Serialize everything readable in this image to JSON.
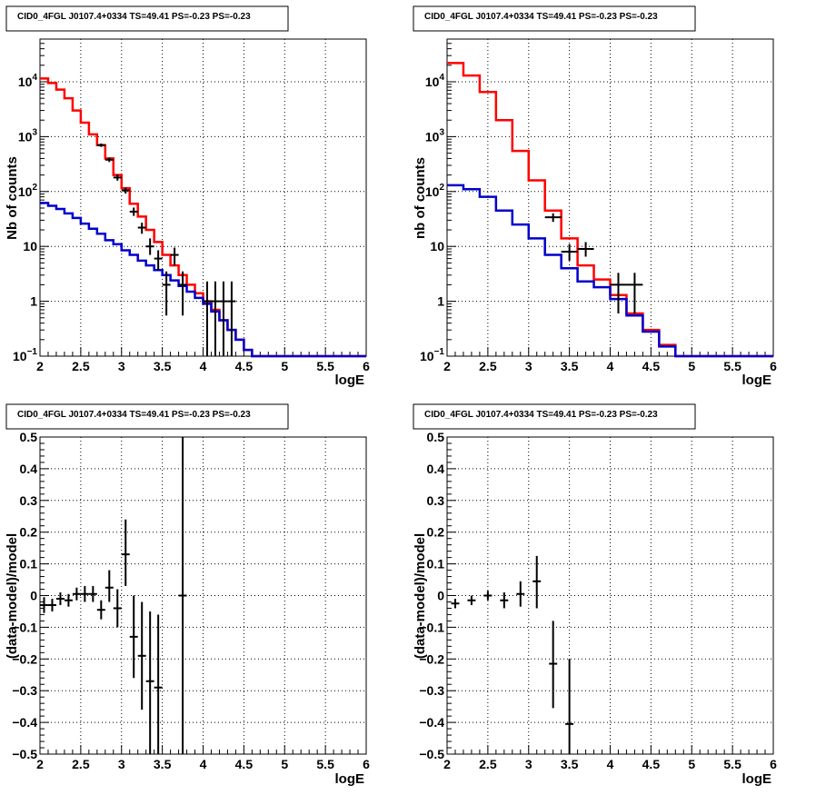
{
  "chart_data": [
    {
      "type": "line",
      "scale": "log",
      "title": "CID0_4FGL J0107.4+0334 TS=49.41 PS=-0.23 PS=-0.23",
      "xlabel": "logE",
      "ylabel": "Nb of counts",
      "xlim": [
        2,
        6
      ],
      "ylim": [
        0.1,
        60000
      ],
      "grid": true,
      "xticks": [
        "2",
        "2.5",
        "3",
        "3.5",
        "4",
        "4.5",
        "5",
        "5.5",
        "6"
      ],
      "yticks": [
        {
          "value": 0.1,
          "base": "10",
          "exp": "−1"
        },
        {
          "value": 1,
          "label": "1"
        },
        {
          "value": 10,
          "label": "10"
        },
        {
          "value": 100,
          "base": "10",
          "exp": "2"
        },
        {
          "value": 1000,
          "base": "10",
          "exp": "3"
        },
        {
          "value": 10000,
          "base": "10",
          "exp": "4"
        }
      ],
      "bin_edges": [
        2,
        2.1,
        2.2,
        2.3,
        2.4,
        2.5,
        2.6,
        2.7,
        2.8,
        2.9,
        3,
        3.1,
        3.2,
        3.3,
        3.4,
        3.5,
        3.6,
        3.7,
        3.8,
        3.9,
        4,
        4.1,
        4.2,
        4.3,
        4.4,
        4.5,
        4.6,
        4.7,
        4.8,
        4.9,
        5,
        5.1,
        5.2,
        5.3,
        5.4,
        5.5,
        5.6,
        5.7,
        5.8,
        5.9,
        6
      ],
      "series": [
        {
          "color": "#ff0000",
          "values": [
            11500,
            9500,
            7200,
            5000,
            3000,
            1800,
            1100,
            700,
            400,
            200,
            115,
            60,
            35,
            20,
            12,
            7,
            4.5,
            3,
            2,
            1.4,
            1,
            0.7,
            0.45,
            0.3,
            0.2,
            0.13,
            0.1,
            0.1,
            0.1,
            0.1,
            0.1,
            0.1,
            0.1,
            0.1,
            0.1,
            0.1,
            0.1,
            0.1,
            0.1,
            0.1
          ]
        },
        {
          "color": "#0000cc",
          "values": [
            62,
            55,
            48,
            40,
            33,
            26,
            21,
            17,
            13,
            11,
            8.5,
            7,
            5.5,
            4.5,
            3.7,
            3,
            2.4,
            1.9,
            1.5,
            1.15,
            0.9,
            0.65,
            0.45,
            0.3,
            0.2,
            0.13,
            0.1,
            0.1,
            0.1,
            0.1,
            0.1,
            0.1,
            0.1,
            0.1,
            0.1,
            0.1,
            0.1,
            0.1,
            0.1,
            0.1
          ]
        }
      ],
      "points": [
        {
          "x": 2.75,
          "y": 700,
          "lo": 650,
          "hi": 750
        },
        {
          "x": 2.85,
          "y": 380,
          "lo": 345,
          "hi": 415
        },
        {
          "x": 2.95,
          "y": 180,
          "lo": 158,
          "hi": 205
        },
        {
          "x": 3.05,
          "y": 105,
          "lo": 92,
          "hi": 118
        },
        {
          "x": 3.15,
          "y": 43,
          "lo": 36,
          "hi": 51
        },
        {
          "x": 3.25,
          "y": 22,
          "lo": 17,
          "hi": 27
        },
        {
          "x": 3.35,
          "y": 10,
          "lo": 7,
          "hi": 14
        },
        {
          "x": 3.45,
          "y": 6,
          "lo": 3.7,
          "hi": 8.5
        },
        {
          "x": 3.55,
          "y": 2,
          "lo": 0.55,
          "hi": 3.5
        },
        {
          "x": 3.65,
          "y": 7,
          "lo": 4.5,
          "hi": 9.5
        },
        {
          "x": 3.75,
          "y": 2,
          "lo": 0.55,
          "hi": 3.5
        },
        {
          "x": 4.05,
          "y": 1,
          "lo": 0.1,
          "hi": 2.3
        },
        {
          "x": 4.15,
          "y": 1,
          "lo": 0.1,
          "hi": 2.3
        },
        {
          "x": 4.25,
          "y": 1,
          "lo": 0.1,
          "hi": 2.3
        },
        {
          "x": 4.35,
          "y": 1,
          "lo": 0.1,
          "hi": 2.3
        }
      ]
    },
    {
      "type": "line",
      "scale": "log",
      "title": "CID0_4FGL J0107.4+0334 TS=49.41 PS=-0.23 PS=-0.23",
      "xlabel": "logE",
      "ylabel": "nb of counts",
      "xlim": [
        2,
        6
      ],
      "ylim": [
        0.1,
        60000
      ],
      "grid": true,
      "xticks": [
        "2",
        "2.5",
        "3",
        "3.5",
        "4",
        "4.5",
        "5",
        "5.5",
        "6"
      ],
      "yticks": [
        {
          "value": 0.1,
          "base": "10",
          "exp": "−1"
        },
        {
          "value": 1,
          "label": "1"
        },
        {
          "value": 10,
          "label": "10"
        },
        {
          "value": 100,
          "base": "10",
          "exp": "2"
        },
        {
          "value": 1000,
          "base": "10",
          "exp": "3"
        },
        {
          "value": 10000,
          "base": "10",
          "exp": "4"
        }
      ],
      "bin_edges": [
        2,
        2.2,
        2.4,
        2.6,
        2.8,
        3,
        3.2,
        3.4,
        3.6,
        3.8,
        4,
        4.2,
        4.4,
        4.6,
        4.8,
        5,
        5.2,
        5.4,
        5.6,
        5.8,
        6
      ],
      "series": [
        {
          "color": "#ff0000",
          "values": [
            22000,
            13000,
            6500,
            2000,
            550,
            160,
            45,
            14,
            4.5,
            2.5,
            1.3,
            0.6,
            0.3,
            0.16,
            0.1,
            0.1,
            0.1,
            0.1,
            0.1,
            0.1
          ]
        },
        {
          "color": "#0000cc",
          "values": [
            130,
            110,
            80,
            45,
            25,
            14,
            7,
            4,
            2.3,
            1.8,
            1.1,
            0.55,
            0.28,
            0.15,
            0.1,
            0.1,
            0.1,
            0.1,
            0.1,
            0.1
          ]
        }
      ],
      "points": [
        {
          "x": 3.3,
          "y": 34,
          "lo": 28,
          "hi": 40
        },
        {
          "x": 3.5,
          "y": 8,
          "lo": 5.5,
          "hi": 11
        },
        {
          "x": 3.7,
          "y": 9,
          "lo": 6.5,
          "hi": 12
        },
        {
          "x": 4.1,
          "y": 2,
          "lo": 0.6,
          "hi": 3.3
        },
        {
          "x": 4.3,
          "y": 2,
          "lo": 0.6,
          "hi": 3.3
        }
      ]
    },
    {
      "type": "scatter",
      "scale": "linear",
      "title": "CID0_4FGL J0107.4+0334 TS=49.41 PS=-0.23 PS=-0.23",
      "xlabel": "logE",
      "ylabel": "(data-model)/model",
      "xlim": [
        2,
        6
      ],
      "ylim": [
        -0.5,
        0.5
      ],
      "grid": true,
      "xticks": [
        "2",
        "2.5",
        "3",
        "3.5",
        "4",
        "4.5",
        "5",
        "5.5",
        "6"
      ],
      "yticks": [
        {
          "value": -0.5,
          "label": "−0.5"
        },
        {
          "value": -0.4,
          "label": "−0.4"
        },
        {
          "value": -0.3,
          "label": "−0.3"
        },
        {
          "value": -0.2,
          "label": "−0.2"
        },
        {
          "value": -0.1,
          "label": "−0.1"
        },
        {
          "value": 0,
          "label": "0"
        },
        {
          "value": 0.1,
          "label": "0.1"
        },
        {
          "value": 0.2,
          "label": "0.2"
        },
        {
          "value": 0.3,
          "label": "0.3"
        },
        {
          "value": 0.4,
          "label": "0.4"
        },
        {
          "value": 0.5,
          "label": "0.5"
        }
      ],
      "points": [
        {
          "x": 2.05,
          "y": -0.03,
          "lo": -0.055,
          "hi": -0.005
        },
        {
          "x": 2.15,
          "y": -0.03,
          "lo": -0.05,
          "hi": -0.01
        },
        {
          "x": 2.25,
          "y": -0.01,
          "lo": -0.03,
          "hi": 0.01
        },
        {
          "x": 2.35,
          "y": -0.015,
          "lo": -0.035,
          "hi": 0.005
        },
        {
          "x": 2.45,
          "y": 0.005,
          "lo": -0.015,
          "hi": 0.025
        },
        {
          "x": 2.55,
          "y": 0.005,
          "lo": -0.02,
          "hi": 0.03
        },
        {
          "x": 2.65,
          "y": 0.005,
          "lo": -0.02,
          "hi": 0.03
        },
        {
          "x": 2.75,
          "y": -0.045,
          "lo": -0.075,
          "hi": -0.015
        },
        {
          "x": 2.85,
          "y": 0.025,
          "lo": -0.02,
          "hi": 0.08
        },
        {
          "x": 2.95,
          "y": -0.04,
          "lo": -0.1,
          "hi": 0.02
        },
        {
          "x": 3.05,
          "y": 0.13,
          "lo": 0.03,
          "hi": 0.24
        },
        {
          "x": 3.15,
          "y": -0.13,
          "lo": -0.26,
          "hi": 0.0
        },
        {
          "x": 3.25,
          "y": -0.19,
          "lo": -0.36,
          "hi": -0.02
        },
        {
          "x": 3.35,
          "y": -0.27,
          "lo": -0.5,
          "hi": -0.05
        },
        {
          "x": 3.45,
          "y": -0.29,
          "lo": -0.5,
          "hi": -0.06
        },
        {
          "x": 3.75,
          "y": 0.0,
          "lo": -0.5,
          "hi": 0.5
        }
      ]
    },
    {
      "type": "scatter",
      "scale": "linear",
      "title": "CID0_4FGL J0107.4+0334 TS=49.41 PS=-0.23 PS=-0.23",
      "xlabel": "logE",
      "ylabel": "(data-model)/model",
      "xlim": [
        2,
        6
      ],
      "ylim": [
        -0.5,
        0.5
      ],
      "grid": true,
      "xticks": [
        "2",
        "2.5",
        "3",
        "3.5",
        "4",
        "4.5",
        "5",
        "5.5",
        "6"
      ],
      "yticks": [
        {
          "value": -0.5,
          "label": "−0.5"
        },
        {
          "value": -0.4,
          "label": "−0.4"
        },
        {
          "value": -0.3,
          "label": "−0.3"
        },
        {
          "value": -0.2,
          "label": "−0.2"
        },
        {
          "value": -0.1,
          "label": "−0.1"
        },
        {
          "value": 0,
          "label": "0"
        },
        {
          "value": 0.1,
          "label": "0.1"
        },
        {
          "value": 0.2,
          "label": "0.2"
        },
        {
          "value": 0.3,
          "label": "0.3"
        },
        {
          "value": 0.4,
          "label": "0.4"
        },
        {
          "value": 0.5,
          "label": "0.5"
        }
      ],
      "points": [
        {
          "x": 2.1,
          "y": -0.025,
          "lo": -0.04,
          "hi": -0.01
        },
        {
          "x": 2.3,
          "y": -0.015,
          "lo": -0.03,
          "hi": 0.0
        },
        {
          "x": 2.5,
          "y": 0.0,
          "lo": -0.015,
          "hi": 0.015
        },
        {
          "x": 2.7,
          "y": -0.015,
          "lo": -0.04,
          "hi": 0.01
        },
        {
          "x": 2.9,
          "y": 0.005,
          "lo": -0.035,
          "hi": 0.045
        },
        {
          "x": 3.1,
          "y": 0.045,
          "lo": -0.04,
          "hi": 0.125
        },
        {
          "x": 3.3,
          "y": -0.215,
          "lo": -0.355,
          "hi": -0.08
        },
        {
          "x": 3.5,
          "y": -0.405,
          "lo": -0.5,
          "hi": -0.2
        }
      ]
    }
  ]
}
